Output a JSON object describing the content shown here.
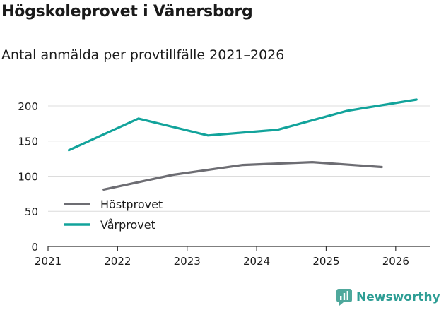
{
  "header": {
    "title": "Högskoleprovet i Vänersborg",
    "subtitle": "Antal anmälda per provtillfälle 2021–2026"
  },
  "brand": {
    "name": "Newsworthy",
    "icon": "newsworthy-logo-icon",
    "color": "#2e9e95"
  },
  "chart_data": {
    "type": "line",
    "title": "Högskoleprovet i Vänersborg",
    "subtitle": "Antal anmälda per provtillfälle 2021–2026",
    "xlabel": "",
    "ylabel": "",
    "xlim": [
      2021,
      2026.5
    ],
    "ylim": [
      0,
      210
    ],
    "x_ticks": [
      2021,
      2022,
      2023,
      2024,
      2025,
      2026
    ],
    "y_ticks": [
      0,
      50,
      100,
      150,
      200
    ],
    "grid": true,
    "legend_position": "bottom-left",
    "series": [
      {
        "name": "Höstprovet",
        "color": "#6d6d73",
        "points": [
          [
            2021.8,
            81
          ],
          [
            2022.8,
            102
          ],
          [
            2023.8,
            116
          ],
          [
            2024.8,
            120
          ],
          [
            2025.8,
            113
          ]
        ]
      },
      {
        "name": "Vårprovet",
        "color": "#12a39b",
        "points": [
          [
            2021.3,
            137
          ],
          [
            2022.3,
            182
          ],
          [
            2023.3,
            158
          ],
          [
            2024.3,
            166
          ],
          [
            2025.3,
            193
          ],
          [
            2026.3,
            209
          ]
        ]
      }
    ]
  }
}
